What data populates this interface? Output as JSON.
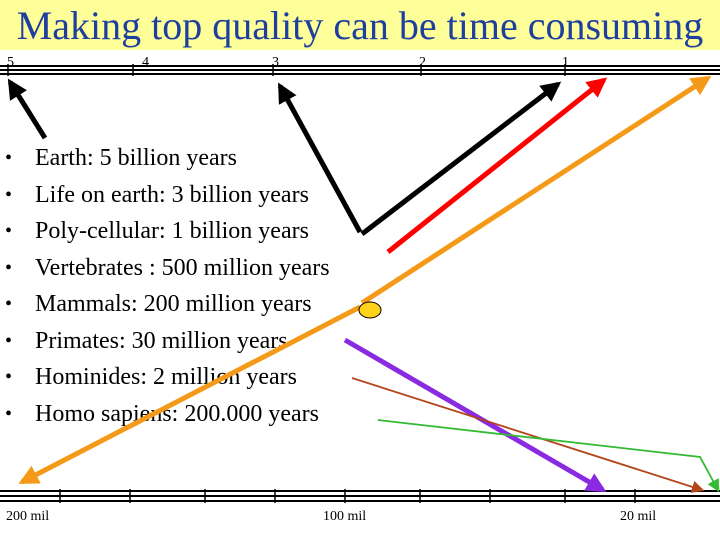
{
  "title": "Making top quality can be time consuming",
  "top_scale": {
    "tick_labels": [
      "5",
      "4",
      "3",
      "2",
      "1"
    ]
  },
  "bullets": [
    "Earth:  5 billion years",
    "Life on earth: 3 billion years",
    "Poly-cellular: 1 billion years",
    "Vertebrates : 500 million years",
    "Mammals: 200 million years",
    "Primates: 30 million years",
    "Hominides: 2 million years",
    "Homo sapiens: 200.000 years"
  ],
  "bottom_scale": {
    "labels": [
      "200 mil",
      "100 mil",
      "20 mil"
    ]
  },
  "colors": {
    "title_band": "#ffff99",
    "title_text": "#1f3f9f",
    "arrow_black": "#000000",
    "arrow_red": "#ff0000",
    "arrow_orange": "#f59a18",
    "arrow_purple": "#8a2be2",
    "arrow_brown": "#b5441a",
    "arrow_green": "#33bb33",
    "mammal_marker": "#ffd21a"
  }
}
